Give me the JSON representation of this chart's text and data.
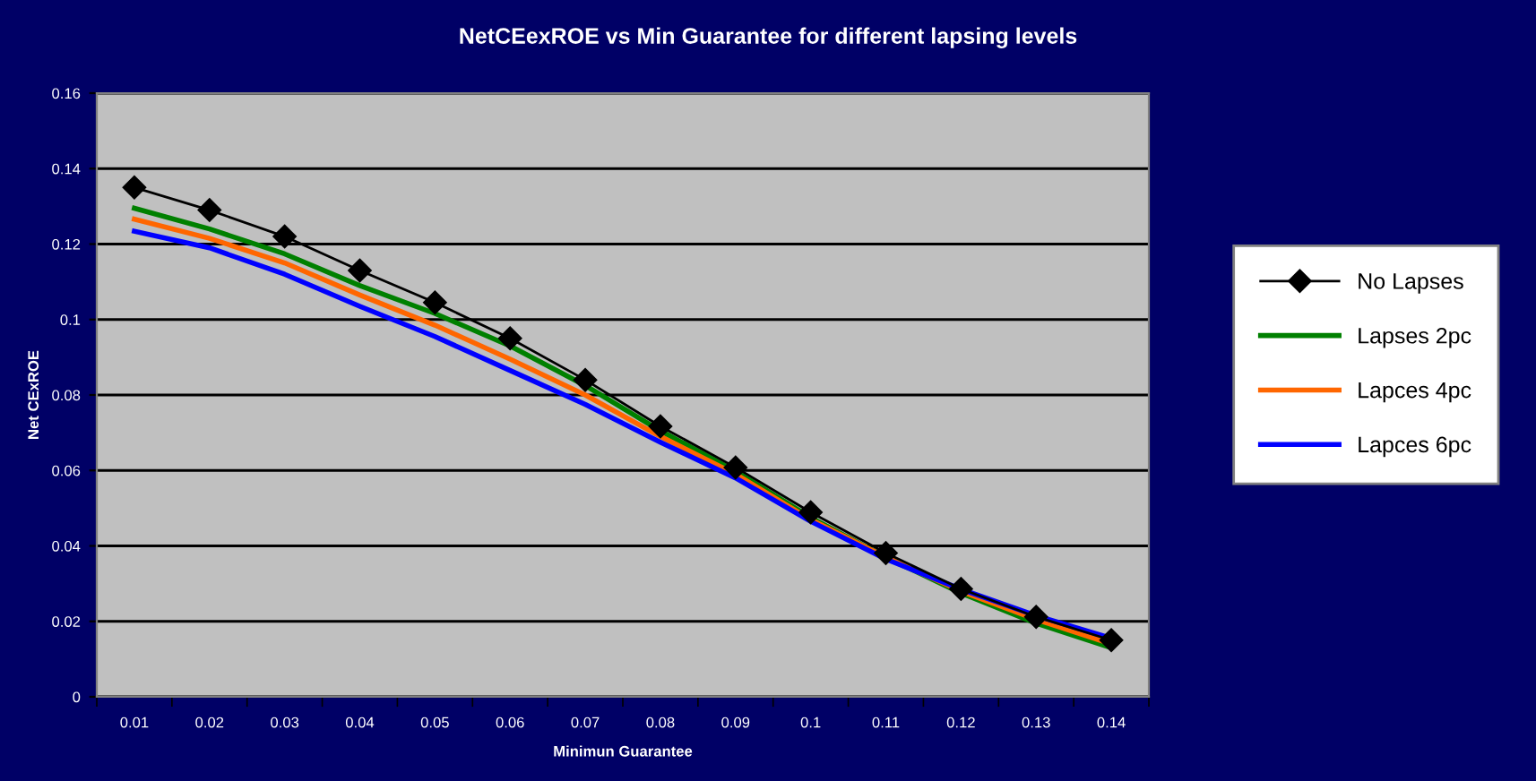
{
  "chart_data": {
    "type": "line",
    "title": "NetCEexROE vs Min Guarantee for different lapsing levels",
    "xlabel": "Minimun Guarantee",
    "ylabel": "Net CExROE",
    "categories": [
      "0.01",
      "0.02",
      "0.03",
      "0.04",
      "0.05",
      "0.06",
      "0.07",
      "0.08",
      "0.09",
      "0.1",
      "0.11",
      "0.12",
      "0.13",
      "0.14"
    ],
    "series": [
      {
        "name": "No Lapses",
        "color": "#000000",
        "marker": "diamond",
        "values": [
          0.135,
          0.129,
          0.122,
          0.113,
          0.1045,
          0.095,
          0.084,
          0.0717,
          0.0608,
          0.0489,
          0.0381,
          0.0286,
          0.0212,
          0.015
        ]
      },
      {
        "name": "Lapses 2pc",
        "color": "#008000",
        "marker": "none",
        "values": [
          0.1295,
          0.124,
          0.1174,
          0.109,
          0.1016,
          0.093,
          0.0825,
          0.0705,
          0.0598,
          0.0475,
          0.037,
          0.0275,
          0.0195,
          0.013
        ]
      },
      {
        "name": "Lapces 4pc",
        "color": "#ff6600",
        "marker": "none",
        "values": [
          0.1266,
          0.1215,
          0.115,
          0.1065,
          0.0985,
          0.0895,
          0.08,
          0.069,
          0.059,
          0.047,
          0.037,
          0.028,
          0.0205,
          0.014
        ]
      },
      {
        "name": "Lapces 6pc",
        "color": "#0000ff",
        "marker": "none",
        "values": [
          0.1234,
          0.119,
          0.112,
          0.1035,
          0.0955,
          0.0865,
          0.0775,
          0.0675,
          0.058,
          0.0465,
          0.0365,
          0.0285,
          0.0215,
          0.0155
        ]
      }
    ],
    "ylim": [
      0,
      0.16
    ],
    "yticks": [
      0,
      0.02,
      0.04,
      0.06,
      0.08,
      {
        "value": 0.1,
        "label": "0.1"
      },
      0.12,
      0.14,
      0.16
    ],
    "grid": "y",
    "legend": "right"
  }
}
